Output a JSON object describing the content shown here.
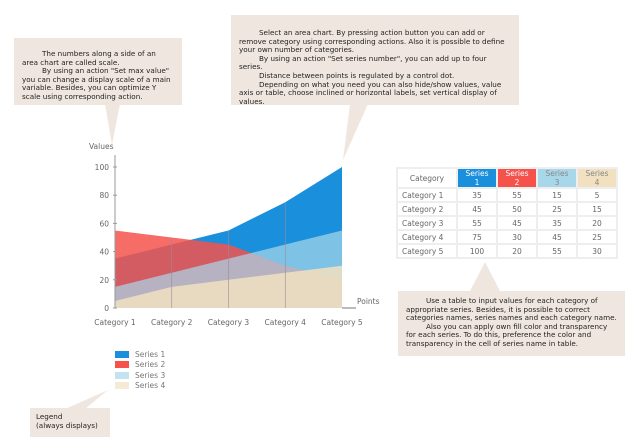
{
  "callouts": {
    "scale": [
      "The numbers along a side of an area chart are called scale.",
      "By using an action \"Set max value\" you can change a display scale of a main variable. Besides, you can optimize Y scale using corresponding action."
    ],
    "chart": [
      "Select an area chart. By pressing action button you can add or remove category using corresponding actions. Also it is possible to define your own number of categories.",
      "By using an action \"Set series number\", you can add up to four series.",
      "Distance between points is regulated by a control dot.",
      "Depending on what you need you can also hide/show values, value axis or table, choose inclined or horizontal labels, set vertical display of values."
    ],
    "table": [
      "Use a table to input values for each category of appropriate series. Besides, it is possible to correct categories names, series names and each category name.",
      "Also you can apply own fill color and transparency for each series. To do this, preference the color and transparency in the cell of series name in table."
    ],
    "legend": [
      "Legend",
      "(always displays)"
    ]
  },
  "chart_data": {
    "type": "area",
    "ylabel": "Values",
    "xlabel": "Points",
    "ylim": [
      0,
      100
    ],
    "yticks": [
      "0",
      "20",
      "40",
      "60",
      "80",
      "100"
    ],
    "categories": [
      "Category 1",
      "Category 2",
      "Category 3",
      "Category 4",
      "Category 5"
    ],
    "series": [
      {
        "name": "Series 1",
        "color": "#1a8fdc",
        "values": [
          35,
          45,
          55,
          75,
          100
        ]
      },
      {
        "name": "Series 2",
        "color": "#f5524c",
        "values": [
          55,
          50,
          45,
          30,
          20
        ]
      },
      {
        "name": "Series 3",
        "color": "#a9d7ea",
        "values": [
          15,
          25,
          35,
          45,
          55
        ]
      },
      {
        "name": "Series 4",
        "color": "#f1e1c0",
        "values": [
          5,
          15,
          20,
          25,
          30
        ]
      }
    ],
    "legend_position": "bottom-left"
  },
  "table": {
    "header": "Category"
  }
}
